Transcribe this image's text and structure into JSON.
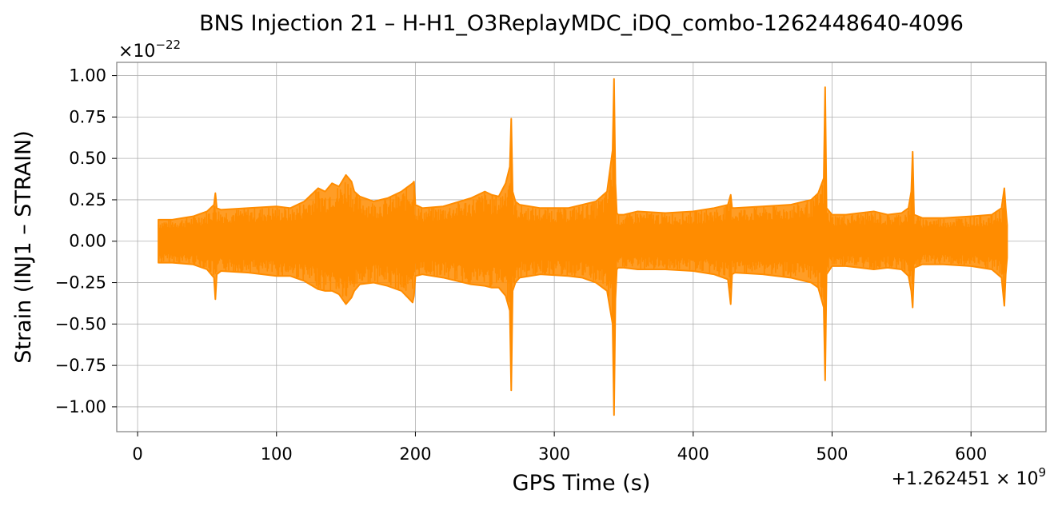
{
  "chart_data": {
    "type": "line",
    "title": "BNS Injection 21 – H-H1_O3ReplayMDC_iDQ_combo-1262448640-4096",
    "xlabel": "GPS Time (s)",
    "ylabel": "Strain (INJ1 – STRAIN)",
    "y_multiplier_text": "×10",
    "y_multiplier_exponent": "−22",
    "x_offset_text": "+1.262451 × 10",
    "x_offset_exponent": "9",
    "xlim": [
      -15,
      654
    ],
    "ylim": [
      -1.15,
      1.08
    ],
    "grid": true,
    "x_ticks": [
      0,
      100,
      200,
      300,
      400,
      500,
      600
    ],
    "x_tick_labels": [
      "0",
      "100",
      "200",
      "300",
      "400",
      "500",
      "600"
    ],
    "y_ticks": [
      1.0,
      0.75,
      0.5,
      0.25,
      0.0,
      -0.25,
      -0.5,
      -0.75,
      -1.0
    ],
    "y_tick_labels": [
      "1.00",
      "0.75",
      "0.50",
      "0.25",
      "0.00",
      "−0.25",
      "−0.50",
      "−0.75",
      "−1.00"
    ],
    "series": [
      {
        "color": "#ff8c00",
        "time_range": [
          15,
          626
        ],
        "envelope": {
          "x": [
            15,
            25,
            40,
            50,
            55,
            56,
            57,
            60,
            80,
            100,
            110,
            120,
            130,
            135,
            140,
            145,
            150,
            152,
            154,
            156,
            160,
            170,
            180,
            190,
            198,
            199,
            200,
            205,
            220,
            240,
            250,
            255,
            260,
            265,
            268,
            269,
            270,
            272,
            275,
            290,
            310,
            320,
            330,
            338,
            342,
            343,
            344,
            345,
            346,
            350,
            360,
            380,
            400,
            415,
            425,
            427,
            428,
            430,
            450,
            470,
            485,
            490,
            494,
            495,
            496,
            500,
            510,
            520,
            530,
            540,
            550,
            555,
            557,
            558,
            559,
            565,
            580,
            600,
            615,
            622,
            624,
            625,
            626
          ],
          "upper": [
            0.13,
            0.13,
            0.15,
            0.18,
            0.22,
            0.29,
            0.2,
            0.19,
            0.2,
            0.21,
            0.2,
            0.24,
            0.32,
            0.3,
            0.35,
            0.33,
            0.4,
            0.38,
            0.36,
            0.3,
            0.27,
            0.24,
            0.26,
            0.3,
            0.35,
            0.36,
            0.22,
            0.2,
            0.21,
            0.26,
            0.3,
            0.28,
            0.27,
            0.35,
            0.45,
            0.74,
            0.3,
            0.24,
            0.22,
            0.2,
            0.2,
            0.22,
            0.24,
            0.3,
            0.55,
            0.98,
            0.35,
            0.17,
            0.16,
            0.16,
            0.18,
            0.17,
            0.18,
            0.2,
            0.22,
            0.28,
            0.2,
            0.2,
            0.21,
            0.22,
            0.25,
            0.29,
            0.38,
            0.93,
            0.2,
            0.16,
            0.16,
            0.17,
            0.18,
            0.16,
            0.17,
            0.2,
            0.3,
            0.54,
            0.16,
            0.14,
            0.14,
            0.15,
            0.16,
            0.2,
            0.32,
            0.2,
            0.1
          ],
          "lower": [
            -0.13,
            -0.13,
            -0.14,
            -0.17,
            -0.22,
            -0.35,
            -0.2,
            -0.18,
            -0.19,
            -0.21,
            -0.21,
            -0.24,
            -0.29,
            -0.3,
            -0.3,
            -0.32,
            -0.38,
            -0.36,
            -0.34,
            -0.3,
            -0.26,
            -0.25,
            -0.27,
            -0.3,
            -0.37,
            -0.33,
            -0.21,
            -0.2,
            -0.22,
            -0.26,
            -0.27,
            -0.28,
            -0.28,
            -0.33,
            -0.42,
            -0.9,
            -0.3,
            -0.25,
            -0.22,
            -0.2,
            -0.21,
            -0.22,
            -0.25,
            -0.3,
            -0.5,
            -1.05,
            -0.35,
            -0.17,
            -0.16,
            -0.16,
            -0.17,
            -0.17,
            -0.18,
            -0.2,
            -0.23,
            -0.38,
            -0.2,
            -0.19,
            -0.2,
            -0.22,
            -0.25,
            -0.28,
            -0.4,
            -0.84,
            -0.2,
            -0.15,
            -0.15,
            -0.16,
            -0.17,
            -0.16,
            -0.17,
            -0.21,
            -0.3,
            -0.4,
            -0.16,
            -0.14,
            -0.14,
            -0.15,
            -0.17,
            -0.22,
            -0.39,
            -0.2,
            -0.1
          ]
        }
      }
    ]
  }
}
